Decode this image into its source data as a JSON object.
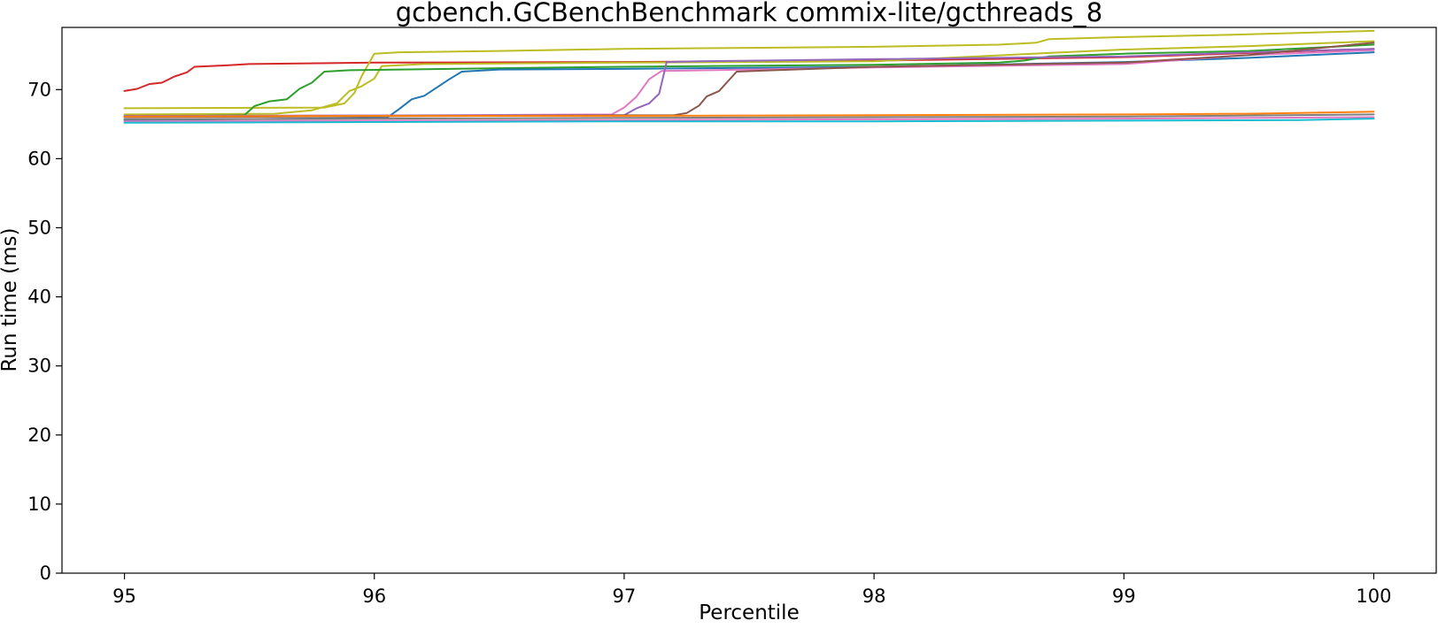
{
  "chart_data": {
    "type": "line",
    "title": "gcbench.GCBenchBenchmark commix-lite/gcthreads_8",
    "xlabel": "Percentile",
    "ylabel": "Run time (ms)",
    "xlim": [
      94.75,
      100.25
    ],
    "ylim": [
      0,
      79
    ],
    "xticks": [
      95,
      96,
      97,
      98,
      99,
      100
    ],
    "yticks": [
      0,
      10,
      20,
      30,
      40,
      50,
      60,
      70
    ],
    "grid": false,
    "legend": "none",
    "series": [
      {
        "color": "#d62728",
        "points": [
          [
            95.0,
            69.8
          ],
          [
            95.05,
            70.1
          ],
          [
            95.1,
            70.8
          ],
          [
            95.15,
            71.0
          ],
          [
            95.2,
            71.9
          ],
          [
            95.25,
            72.5
          ],
          [
            95.28,
            73.3
          ],
          [
            95.4,
            73.5
          ],
          [
            95.5,
            73.7
          ],
          [
            96.0,
            73.9
          ],
          [
            97.0,
            74.0
          ],
          [
            98.0,
            74.2
          ],
          [
            99.0,
            74.7
          ],
          [
            99.5,
            75.3
          ],
          [
            100.0,
            75.9
          ]
        ]
      },
      {
        "color": "#bcbd22",
        "points": [
          [
            95.0,
            67.3
          ],
          [
            95.8,
            67.4
          ],
          [
            95.88,
            68.0
          ],
          [
            95.92,
            69.5
          ],
          [
            95.95,
            72.0
          ],
          [
            96.0,
            75.2
          ],
          [
            96.1,
            75.4
          ],
          [
            96.5,
            75.6
          ],
          [
            97.0,
            75.9
          ],
          [
            98.0,
            76.2
          ],
          [
            98.5,
            76.5
          ],
          [
            98.65,
            76.8
          ],
          [
            98.7,
            77.3
          ],
          [
            99.0,
            77.6
          ],
          [
            99.5,
            78.0
          ],
          [
            100.0,
            78.5
          ]
        ]
      },
      {
        "color": "#bcbd22",
        "points": [
          [
            95.0,
            66.4
          ],
          [
            95.6,
            66.5
          ],
          [
            95.75,
            67.0
          ],
          [
            95.85,
            68.0
          ],
          [
            95.9,
            69.8
          ],
          [
            95.95,
            70.5
          ],
          [
            96.0,
            71.6
          ],
          [
            96.03,
            73.4
          ],
          [
            96.2,
            73.7
          ],
          [
            97.0,
            73.9
          ],
          [
            98.0,
            74.1
          ],
          [
            98.7,
            75.3
          ],
          [
            99.0,
            75.8
          ],
          [
            99.5,
            76.3
          ],
          [
            100.0,
            77.0
          ]
        ]
      },
      {
        "color": "#2ca02c",
        "points": [
          [
            95.0,
            66.0
          ],
          [
            95.48,
            66.3
          ],
          [
            95.52,
            67.6
          ],
          [
            95.58,
            68.3
          ],
          [
            95.65,
            68.6
          ],
          [
            95.7,
            70.1
          ],
          [
            95.75,
            71.0
          ],
          [
            95.8,
            72.6
          ],
          [
            95.9,
            72.8
          ],
          [
            96.5,
            73.1
          ],
          [
            97.0,
            73.3
          ],
          [
            98.0,
            73.6
          ],
          [
            98.5,
            73.9
          ],
          [
            98.6,
            74.2
          ],
          [
            98.7,
            74.8
          ],
          [
            99.0,
            75.2
          ],
          [
            99.5,
            75.6
          ],
          [
            100.0,
            76.5
          ]
        ]
      },
      {
        "color": "#1f77b4",
        "points": [
          [
            95.0,
            65.6
          ],
          [
            96.05,
            65.9
          ],
          [
            96.1,
            67.2
          ],
          [
            96.15,
            68.6
          ],
          [
            96.2,
            69.1
          ],
          [
            96.25,
            70.3
          ],
          [
            96.3,
            71.5
          ],
          [
            96.35,
            72.6
          ],
          [
            96.5,
            72.9
          ],
          [
            97.0,
            73.0
          ],
          [
            98.0,
            73.3
          ],
          [
            99.0,
            74.0
          ],
          [
            99.5,
            74.6
          ],
          [
            100.0,
            75.4
          ]
        ]
      },
      {
        "color": "#e377c2",
        "points": [
          [
            95.0,
            66.1
          ],
          [
            96.95,
            66.4
          ],
          [
            97.0,
            67.4
          ],
          [
            97.05,
            69.0
          ],
          [
            97.1,
            71.5
          ],
          [
            97.15,
            72.7
          ],
          [
            97.5,
            72.9
          ],
          [
            98.0,
            73.2
          ],
          [
            99.0,
            73.7
          ],
          [
            99.5,
            75.0
          ],
          [
            100.0,
            75.7
          ]
        ]
      },
      {
        "color": "#9467bd",
        "points": [
          [
            95.0,
            66.2
          ],
          [
            97.0,
            66.3
          ],
          [
            97.05,
            67.3
          ],
          [
            97.1,
            68.0
          ],
          [
            97.14,
            69.4
          ],
          [
            97.17,
            74.0
          ],
          [
            97.3,
            74.1
          ],
          [
            98.0,
            74.4
          ],
          [
            99.0,
            74.8
          ],
          [
            99.5,
            75.4
          ],
          [
            100.0,
            75.9
          ]
        ]
      },
      {
        "color": "#8c564b",
        "points": [
          [
            95.0,
            66.0
          ],
          [
            97.2,
            66.3
          ],
          [
            97.25,
            66.6
          ],
          [
            97.3,
            67.7
          ],
          [
            97.33,
            69.0
          ],
          [
            97.38,
            69.8
          ],
          [
            97.45,
            72.6
          ],
          [
            97.6,
            72.8
          ],
          [
            98.0,
            73.3
          ],
          [
            99.0,
            73.9
          ],
          [
            99.5,
            75.0
          ],
          [
            100.0,
            76.8
          ]
        ]
      },
      {
        "color": "#ff7f0e",
        "points": [
          [
            95.0,
            66.1
          ],
          [
            96.0,
            66.2
          ],
          [
            97.0,
            66.2
          ],
          [
            98.0,
            66.3
          ],
          [
            99.0,
            66.4
          ],
          [
            99.5,
            66.5
          ],
          [
            100.0,
            66.8
          ]
        ]
      },
      {
        "color": "#7f7f7f",
        "points": [
          [
            95.0,
            65.7
          ],
          [
            96.0,
            65.8
          ],
          [
            97.0,
            65.9
          ],
          [
            98.0,
            66.0
          ],
          [
            99.0,
            66.1
          ],
          [
            100.0,
            66.4
          ]
        ]
      },
      {
        "color": "#e377c2",
        "points": [
          [
            95.0,
            65.4
          ],
          [
            97.0,
            65.6
          ],
          [
            98.0,
            65.7
          ],
          [
            99.0,
            65.8
          ],
          [
            100.0,
            66.0
          ]
        ]
      },
      {
        "color": "#17becf",
        "points": [
          [
            95.0,
            65.2
          ],
          [
            96.0,
            65.3
          ],
          [
            97.0,
            65.4
          ],
          [
            98.0,
            65.4
          ],
          [
            99.0,
            65.5
          ],
          [
            99.7,
            65.6
          ],
          [
            100.0,
            65.8
          ]
        ]
      }
    ]
  }
}
